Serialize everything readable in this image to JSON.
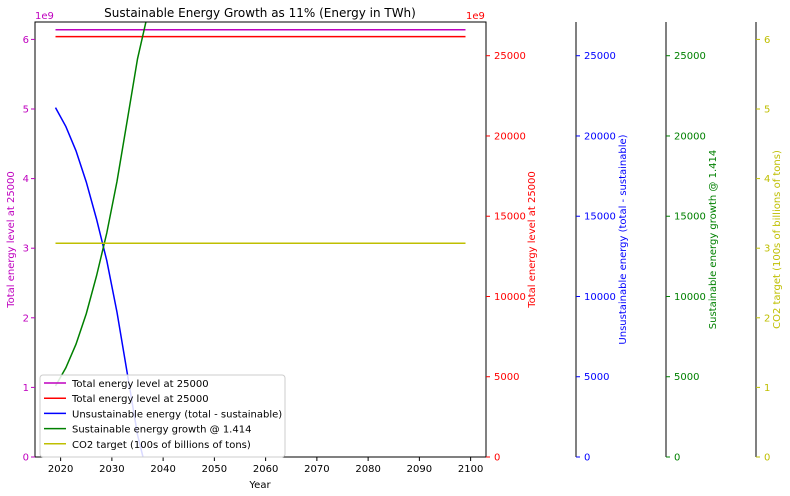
{
  "chart_data": {
    "type": "line",
    "title": "Sustainable Energy Growth as 11% (Energy in TWh)",
    "xlabel": "Year",
    "xlim": [
      2015,
      2103
    ],
    "xticks": [
      2020,
      2030,
      2040,
      2050,
      2060,
      2070,
      2080,
      2090,
      2100
    ],
    "axes": [
      {
        "id": "ax1",
        "label": "Total energy level at 25000",
        "color": "#bf00bf",
        "ylim": [
          0,
          6.25
        ],
        "ticks": [
          0,
          1,
          2,
          3,
          4,
          5,
          6
        ],
        "offset_label": "1e9"
      },
      {
        "id": "ax2",
        "label": "Total energy level at 25000",
        "color": "#ff0000",
        "ylim": [
          0,
          27100
        ],
        "ticks": [
          0,
          5000,
          10000,
          15000,
          20000,
          25000
        ],
        "offset_label": "1e9"
      },
      {
        "id": "ax3",
        "label": "Unsustainable energy (total - sustainable)",
        "color": "#0000ff",
        "ylim": [
          0,
          27100
        ],
        "ticks": [
          0,
          5000,
          10000,
          15000,
          20000,
          25000
        ]
      },
      {
        "id": "ax4",
        "label": "Sustainable energy growth @ 1.414",
        "color": "#008000",
        "ylim": [
          0,
          27100
        ],
        "ticks": [
          0,
          5000,
          10000,
          15000,
          20000,
          25000
        ]
      },
      {
        "id": "ax5",
        "label": "CO2 target (100s of billions of tons)",
        "color": "#bfbf00",
        "ylim": [
          0,
          6.25
        ],
        "ticks": [
          0,
          1,
          2,
          3,
          4,
          5,
          6
        ]
      }
    ],
    "series": [
      {
        "name": "Total energy level at 25000",
        "axis": "ax1",
        "color": "#bf00bf",
        "x": [
          2019,
          2099
        ],
        "y": [
          6.14,
          6.14
        ]
      },
      {
        "name": "Total energy level at 25000",
        "axis": "ax1",
        "color": "#ff0000",
        "x": [
          2019,
          2099
        ],
        "y": [
          6.04,
          6.04
        ]
      },
      {
        "name": "Unsustainable energy (total - sustainable)",
        "axis": "ax1",
        "color": "#0000ff",
        "x": [
          2019,
          2021,
          2023,
          2025,
          2027,
          2029,
          2031,
          2033,
          2035,
          2036.4
        ],
        "y": [
          5.02,
          4.75,
          4.4,
          3.95,
          3.42,
          2.82,
          2.08,
          1.2,
          0.32,
          -0.1
        ]
      },
      {
        "name": "Sustainable energy growth @ 1.414",
        "axis": "ax1",
        "color": "#008000",
        "x": [
          2019,
          2021,
          2023,
          2025,
          2027,
          2029,
          2031,
          2033,
          2035,
          2036.8
        ],
        "y": [
          1.02,
          1.28,
          1.62,
          2.06,
          2.6,
          3.22,
          3.96,
          4.84,
          5.72,
          6.3
        ]
      },
      {
        "name": "CO2 target (100s of billions of tons)",
        "axis": "ax1",
        "color": "#bfbf00",
        "x": [
          2019,
          2099
        ],
        "y": [
          3.07,
          3.07
        ]
      }
    ],
    "legend_position": "lower-left",
    "grid": false
  }
}
